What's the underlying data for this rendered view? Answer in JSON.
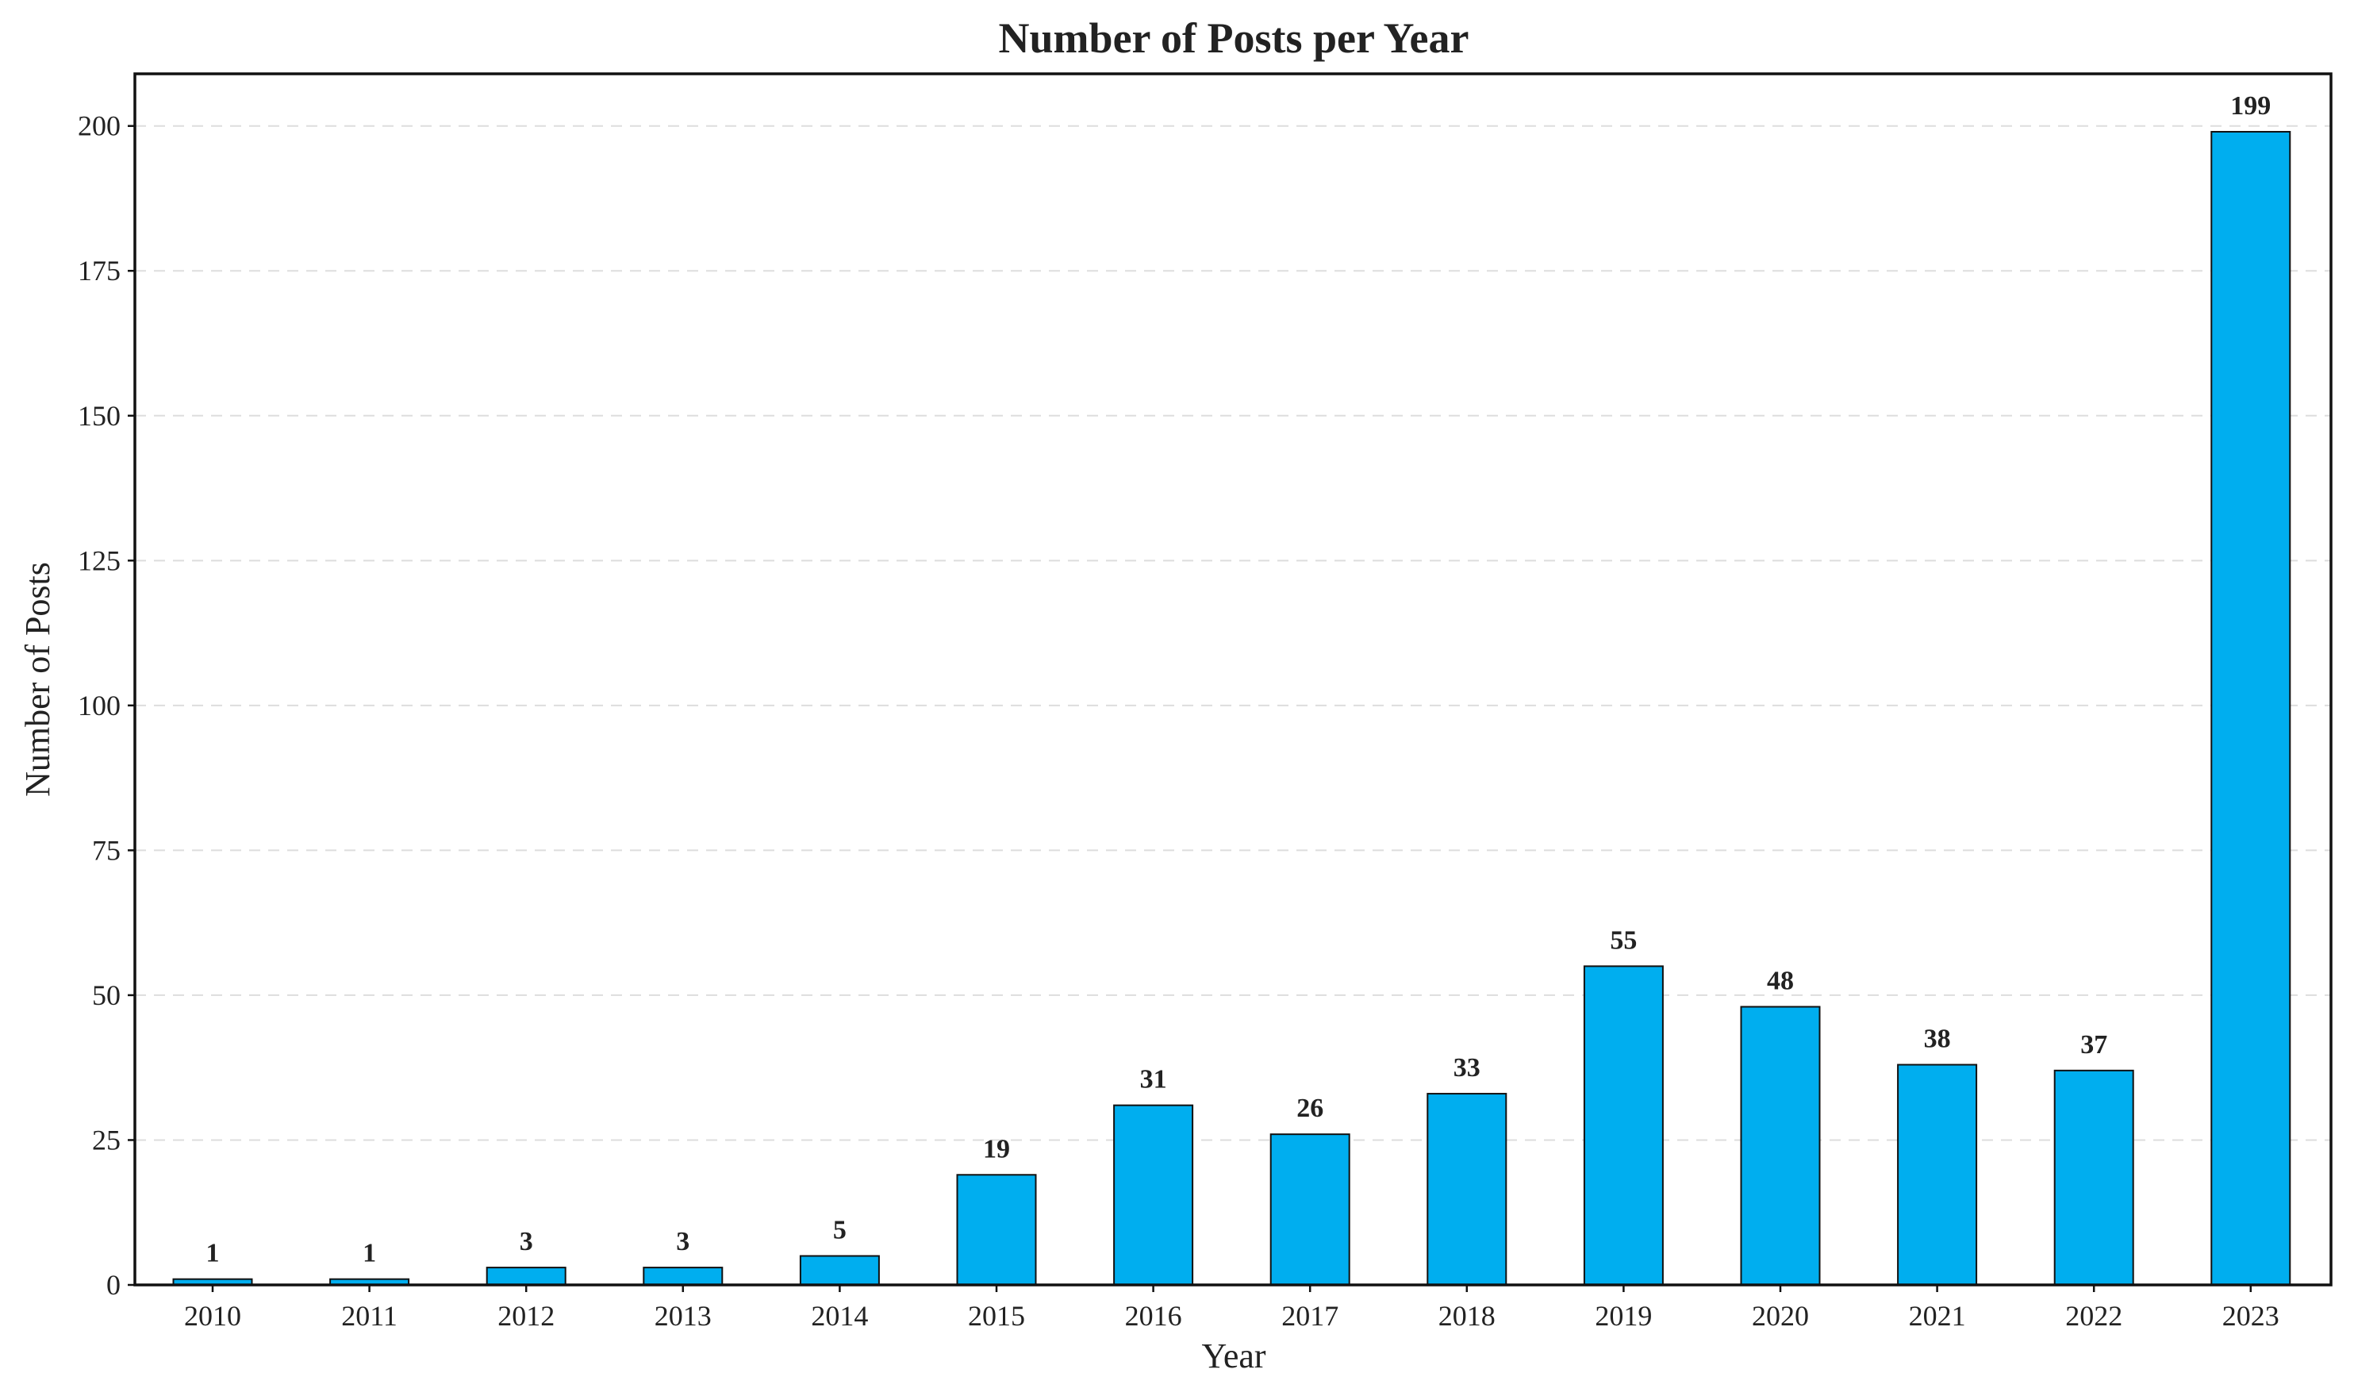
{
  "chart_data": {
    "type": "bar",
    "title": "Number of Posts per Year",
    "xlabel": "Year",
    "ylabel": "Number of Posts",
    "categories": [
      "2010",
      "2011",
      "2012",
      "2013",
      "2014",
      "2015",
      "2016",
      "2017",
      "2018",
      "2019",
      "2020",
      "2021",
      "2022",
      "2023"
    ],
    "values": [
      1,
      1,
      3,
      3,
      5,
      19,
      31,
      26,
      33,
      55,
      48,
      38,
      37,
      199
    ],
    "ylim": [
      0,
      209
    ],
    "yticks": [
      0,
      25,
      50,
      75,
      100,
      125,
      150,
      175,
      200
    ],
    "grid": "horizontal dashed",
    "bar_color": "#00aeef",
    "edge_color": "#111111",
    "data_labels": true
  }
}
